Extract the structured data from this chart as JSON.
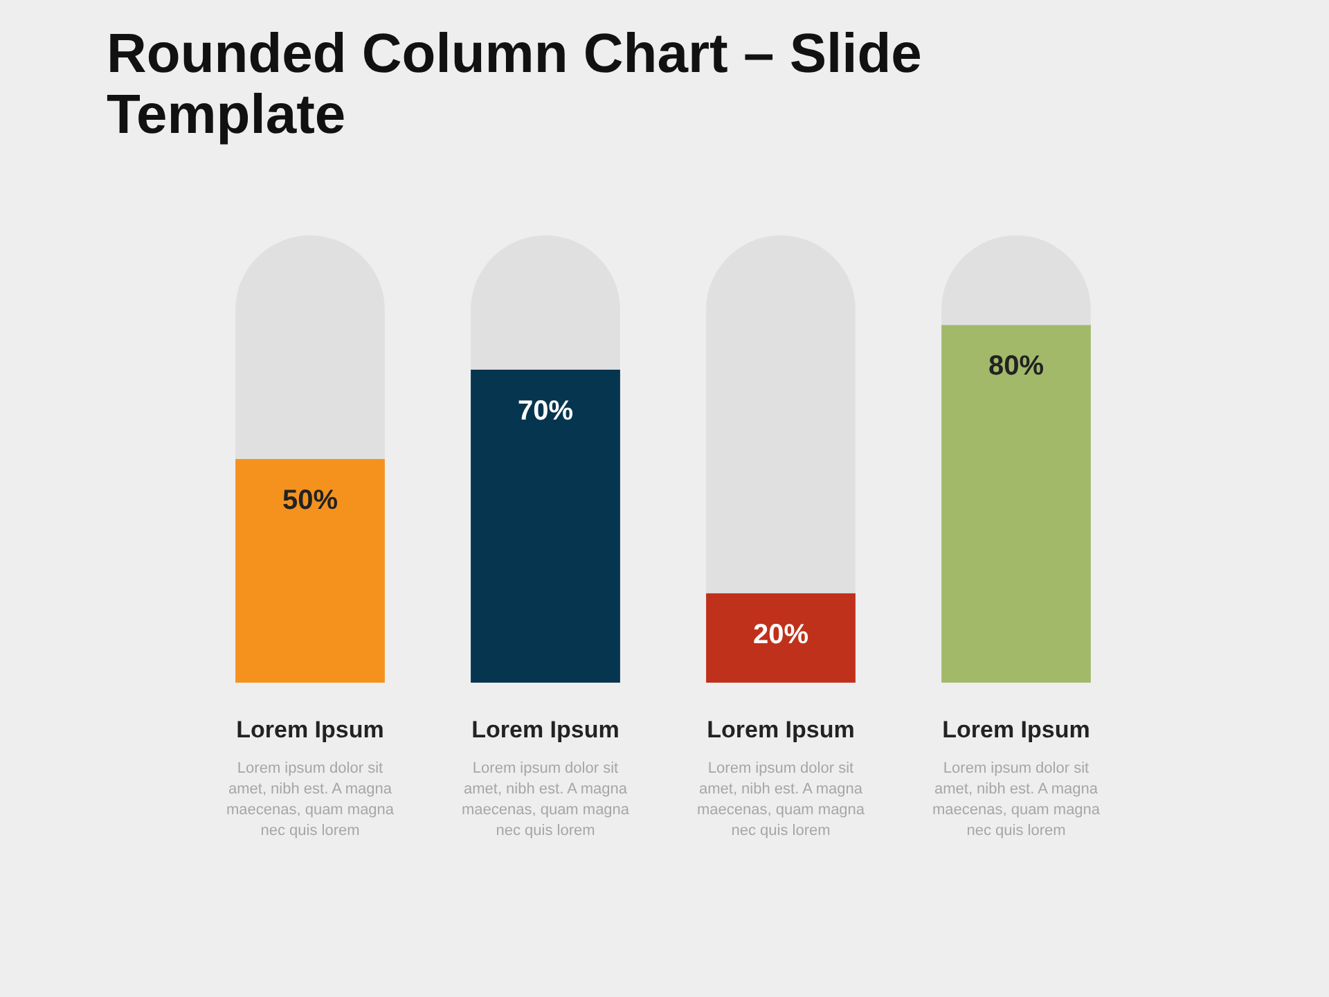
{
  "chart_data": {
    "type": "bar",
    "title": "Rounded Column Chart – Slide Template",
    "stacked": true,
    "categories": [
      "Lorem Ipsum",
      "Lorem Ipsum",
      "Lorem Ipsum",
      "Lorem Ipsum"
    ],
    "series": [
      {
        "colors": [
          "#f5921e",
          "#06354f",
          "#c0311b",
          "#a2b96a"
        ],
        "values": [
          50,
          70,
          20,
          80
        ],
        "value_labels": [
          "50%",
          "70%",
          "20%",
          "80%"
        ]
      },
      {
        "color": "#e0e0e0",
        "values": [
          50,
          30,
          80,
          20
        ]
      }
    ],
    "ylim": [
      0,
      100
    ],
    "tick_labels": "x",
    "annotations": [
      "Lorem ipsum dolor sit amet, nibh est. A magna maecenas, quam magna nec quis lorem",
      "Lorem ipsum dolor sit amet, nibh est. A magna maecenas, quam magna nec quis lorem",
      "Lorem ipsum dolor sit amet, nibh est. A magna maecenas, quam magna nec quis lorem",
      "Lorem ipsum dolor sit amet, nibh est. A magna maecenas, quam magna nec quis lorem"
    ]
  }
}
